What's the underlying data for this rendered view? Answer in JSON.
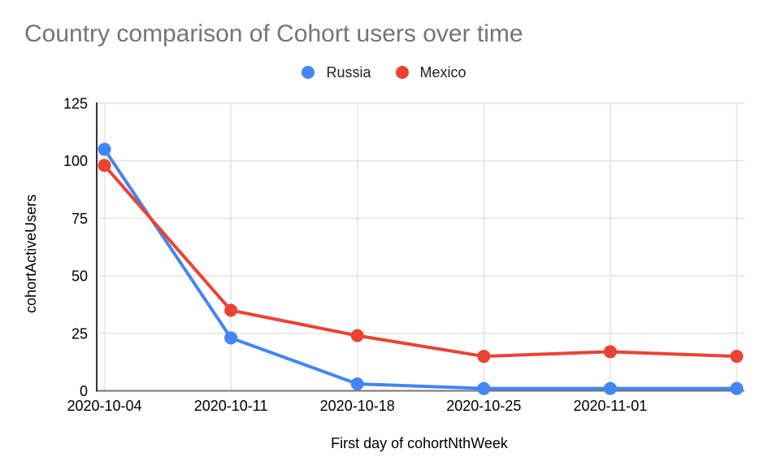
{
  "chart_data": {
    "type": "line",
    "title": "Country comparison of Cohort users over time",
    "xlabel": "First day of cohortNthWeek",
    "ylabel": "cohortActiveUsers",
    "x_tick_labels": [
      "2020-10-04",
      "2020-10-11",
      "2020-10-18",
      "2020-10-25",
      "2020-11-01",
      ""
    ],
    "y_ticks": [
      0,
      25,
      50,
      75,
      100,
      125
    ],
    "ylim": [
      0,
      125
    ],
    "grid": true,
    "legend_position": "top-center",
    "series": [
      {
        "name": "Russia",
        "color": "#4285F4",
        "values": [
          105,
          23,
          3,
          1,
          1,
          1
        ]
      },
      {
        "name": "Mexico",
        "color": "#EA4335",
        "values": [
          98,
          35,
          24,
          15,
          17,
          15
        ]
      }
    ],
    "colors": {
      "title_text": "#757575",
      "tick_text": "#000000",
      "axis_title_text": "#000000",
      "legend_text": "#212121"
    }
  }
}
